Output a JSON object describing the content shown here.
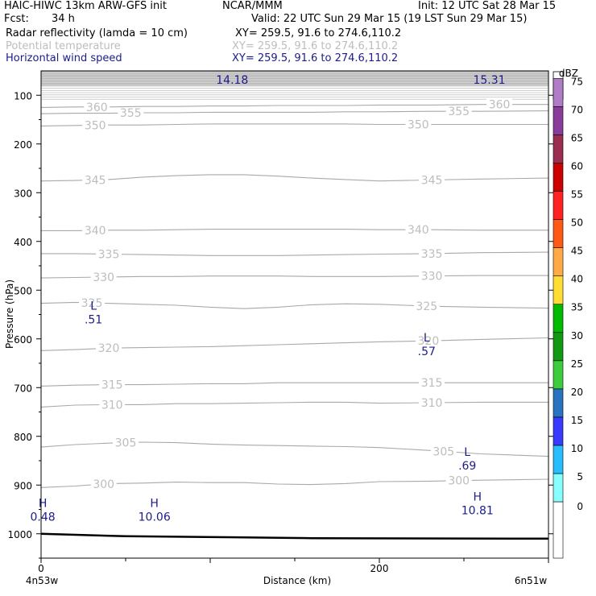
{
  "header": {
    "model": "HAIC-HIWC 13km ARW-GFS init",
    "org": "NCAR/MMM",
    "init": "Init: 12 UTC Sat 28 Mar 15",
    "fcst_label": "Fcst:",
    "fcst_value": "34 h",
    "valid": "Valid: 22 UTC Sun 29 Mar 15 (19 LST Sun 29 Mar 15)",
    "fields": [
      {
        "name": "Radar reflectivity (lamda = 10 cm)",
        "xy": "XY= 259.5, 91.6 to 274.6,110.2"
      },
      {
        "name": "Potential temperature",
        "xy": "XY= 259.5, 91.6 to 274.6,110.2"
      },
      {
        "name": "Horizontal wind speed",
        "xy": "XY= 259.5, 91.6 to 274.6,110.2"
      }
    ]
  },
  "colors": {
    "theta": "#bdbdbd",
    "wind": "#1c1c8a",
    "terrain": "#000000"
  },
  "chart_data": {
    "type": "line",
    "title": "",
    "xlabel": "Distance (km)",
    "ylabel": "Pressure (hPa)",
    "xlim": [
      0,
      300
    ],
    "ylim": [
      1050,
      50
    ],
    "x_ticks": [
      0,
      200
    ],
    "y_ticks": [
      100,
      200,
      300,
      400,
      500,
      600,
      700,
      800,
      900,
      1000
    ],
    "x_end_labels": {
      "left": "4n53w",
      "right": "6n51w"
    },
    "series": [
      {
        "name": "Potential temperature",
        "type": "contour",
        "values": [
          300,
          305,
          310,
          315,
          320,
          325,
          330,
          335,
          340,
          345,
          350,
          355,
          360
        ]
      },
      {
        "name": "Horizontal wind speed",
        "type": "extrema",
        "points": [
          {
            "kind": "H",
            "value": "0.48",
            "x": 1,
            "p": 945
          },
          {
            "kind": "H",
            "value": "10.06",
            "x": 67,
            "p": 945
          },
          {
            "kind": "H",
            "value": "10.81",
            "x": 258,
            "p": 932
          },
          {
            "kind": "L",
            "value": ".51",
            "x": 31,
            "p": 540
          },
          {
            "kind": "L",
            "value": ".57",
            "x": 228,
            "p": 605
          },
          {
            "kind": "L",
            "value": ".69",
            "x": 252,
            "p": 840
          },
          {
            "kind": "max",
            "value": "14.18",
            "x": 113,
            "p": 68
          },
          {
            "kind": "max",
            "value": "15.31",
            "x": 265,
            "p": 68
          }
        ]
      }
    ],
    "terrain_surface_hPa": [
      [
        0,
        1000
      ],
      [
        50,
        1005
      ],
      [
        110,
        1007
      ],
      [
        160,
        1009
      ],
      [
        300,
        1010
      ]
    ],
    "legend": {
      "unit": "dBZ",
      "placement": "right",
      "levels": [
        0,
        5,
        10,
        15,
        20,
        25,
        30,
        35,
        40,
        45,
        50,
        55,
        60,
        65,
        70,
        75
      ],
      "colors": [
        "#ffffff",
        "#88ffff",
        "#28bdff",
        "#3a3aff",
        "#2874c0",
        "#3ccc3c",
        "#119911",
        "#00bb00",
        "#ffdd33",
        "#ffaa44",
        "#ff5a14",
        "#ff2222",
        "#cc0000",
        "#9b2d51",
        "#8a3c9c",
        "#b07cc6"
      ]
    }
  }
}
